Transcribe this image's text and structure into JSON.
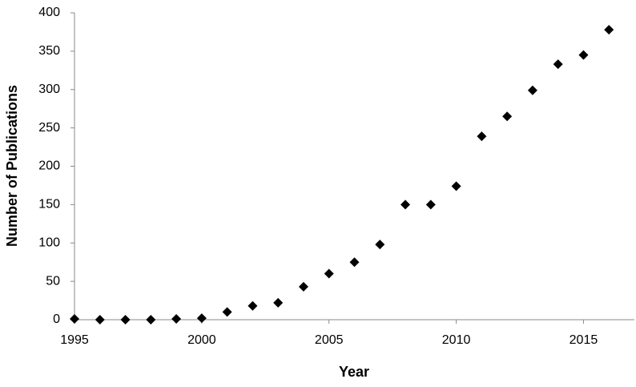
{
  "chart_data": {
    "type": "scatter",
    "x_label": "Year",
    "y_label": "Number of Publications",
    "x": [
      1995,
      1996,
      1997,
      1998,
      1999,
      2000,
      2001,
      2002,
      2003,
      2004,
      2005,
      2006,
      2007,
      2008,
      2009,
      2010,
      2011,
      2012,
      2013,
      2014,
      2015,
      2016
    ],
    "series": [
      {
        "color": "#000000",
        "values": [
          1,
          0,
          0,
          0,
          1,
          2,
          10,
          18,
          22,
          43,
          60,
          75,
          98,
          150,
          150,
          174,
          239,
          265,
          299,
          333,
          345,
          378
        ]
      }
    ],
    "xlim": [
      1995,
      2017
    ],
    "xticks": [
      1995,
      2000,
      2005,
      2010,
      2015
    ],
    "ylim": [
      0,
      400
    ],
    "yticks": [
      0,
      50,
      100,
      150,
      200,
      250,
      300,
      350,
      400
    ],
    "grid": false
  }
}
